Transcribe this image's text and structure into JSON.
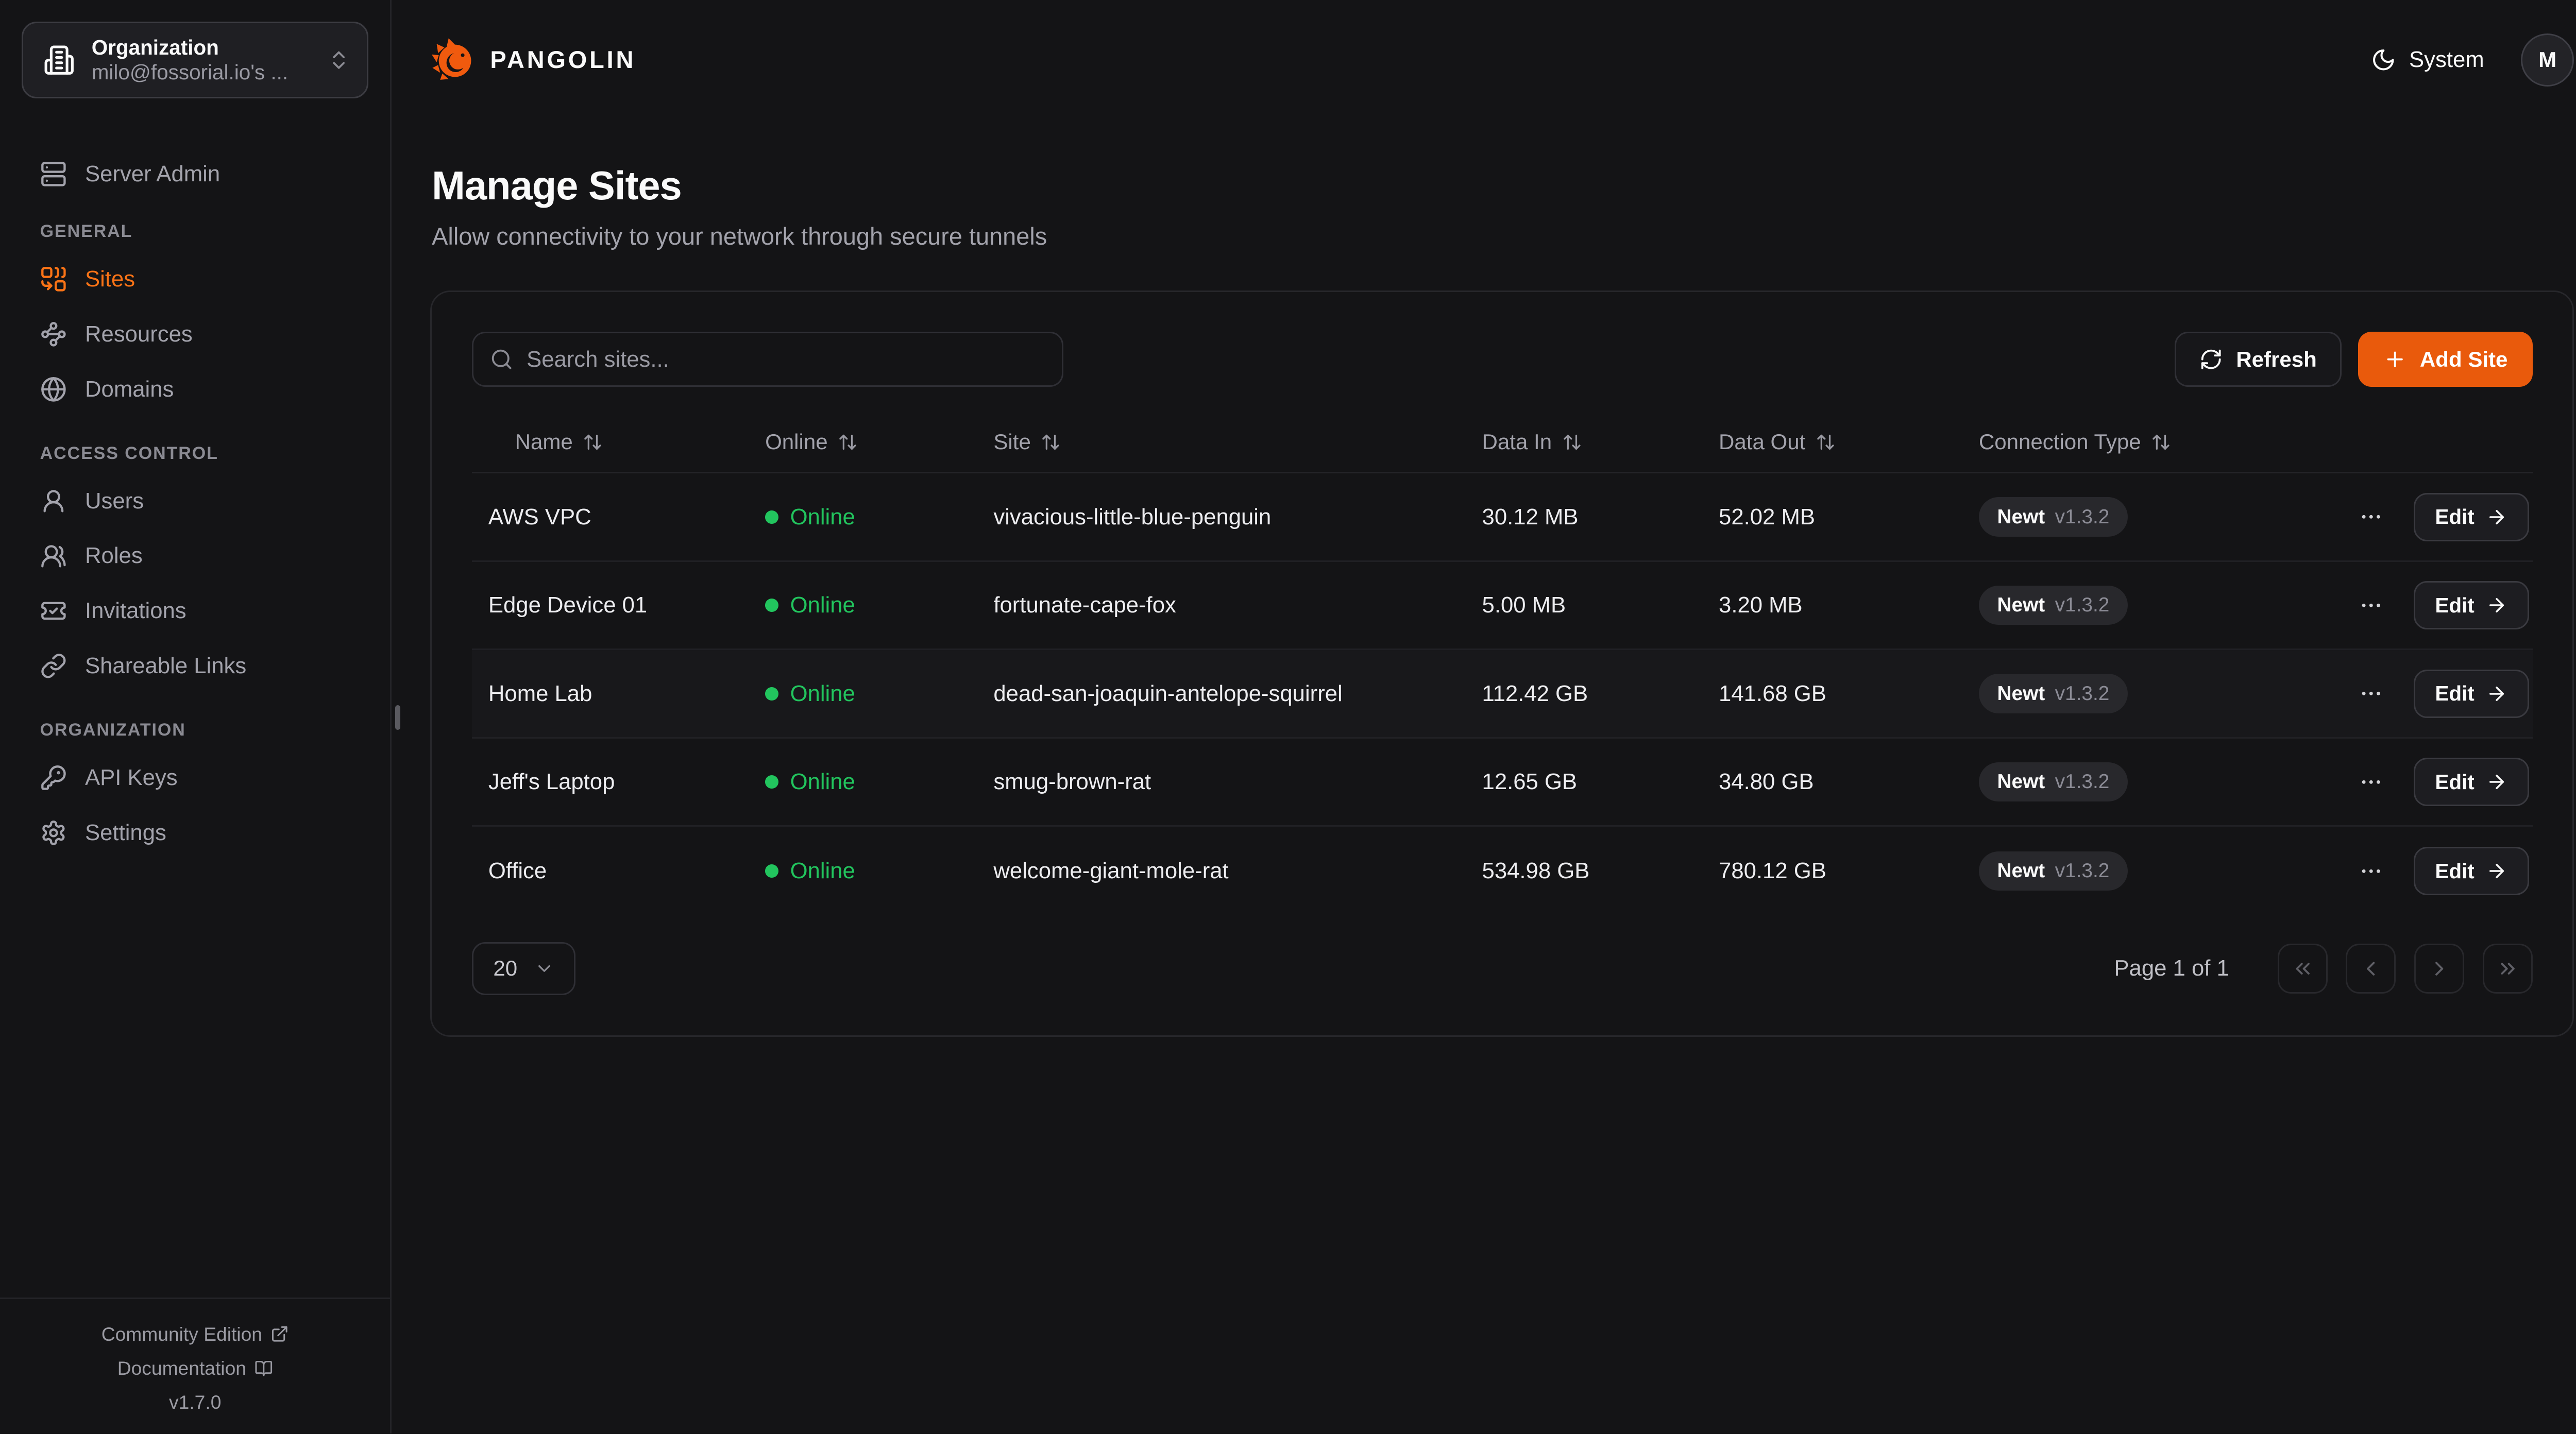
{
  "sidebar": {
    "org_switcher": {
      "label": "Organization",
      "value": "milo@fossorial.io's ..."
    },
    "server_admin_label": "Server Admin",
    "sections": [
      {
        "label": "GENERAL",
        "items": [
          {
            "label": "Sites"
          },
          {
            "label": "Resources"
          },
          {
            "label": "Domains"
          }
        ]
      },
      {
        "label": "ACCESS CONTROL",
        "items": [
          {
            "label": "Users"
          },
          {
            "label": "Roles"
          },
          {
            "label": "Invitations"
          },
          {
            "label": "Shareable Links"
          }
        ]
      },
      {
        "label": "ORGANIZATION",
        "items": [
          {
            "label": "API Keys"
          },
          {
            "label": "Settings"
          }
        ]
      }
    ],
    "footer": {
      "community": "Community Edition",
      "documentation": "Documentation",
      "version": "v1.7.0"
    }
  },
  "header": {
    "brand": "PANGOLIN",
    "theme_label": "System",
    "avatar_initial": "M"
  },
  "page": {
    "title": "Manage Sites",
    "subtitle": "Allow connectivity to your network through secure tunnels"
  },
  "toolbar": {
    "search_placeholder": "Search sites...",
    "refresh_label": "Refresh",
    "add_site_label": "Add Site"
  },
  "table": {
    "columns": [
      "Name",
      "Online",
      "Site",
      "Data In",
      "Data Out",
      "Connection Type"
    ],
    "edit_label": "Edit",
    "rows": [
      {
        "name": "AWS VPC",
        "status": "Online",
        "site": "vivacious-little-blue-penguin",
        "data_in": "30.12 MB",
        "data_out": "52.02 MB",
        "conn_type": "Newt",
        "conn_version": "v1.3.2"
      },
      {
        "name": "Edge Device 01",
        "status": "Online",
        "site": "fortunate-cape-fox",
        "data_in": "5.00 MB",
        "data_out": "3.20 MB",
        "conn_type": "Newt",
        "conn_version": "v1.3.2"
      },
      {
        "name": "Home Lab",
        "status": "Online",
        "site": "dead-san-joaquin-antelope-squirrel",
        "data_in": "112.42 GB",
        "data_out": "141.68 GB",
        "conn_type": "Newt",
        "conn_version": "v1.3.2"
      },
      {
        "name": "Jeff's Laptop",
        "status": "Online",
        "site": "smug-brown-rat",
        "data_in": "12.65 GB",
        "data_out": "34.80 GB",
        "conn_type": "Newt",
        "conn_version": "v1.3.2"
      },
      {
        "name": "Office",
        "status": "Online",
        "site": "welcome-giant-mole-rat",
        "data_in": "534.98 GB",
        "data_out": "780.12 GB",
        "conn_type": "Newt",
        "conn_version": "v1.3.2"
      }
    ]
  },
  "pagination": {
    "page_size": "20",
    "page_info": "Page 1 of 1"
  },
  "colors": {
    "accent_orange": "#e95a0c",
    "active_nav": "#f97316",
    "online_green": "#22c55e",
    "background": "#141416",
    "border": "#27272b"
  }
}
